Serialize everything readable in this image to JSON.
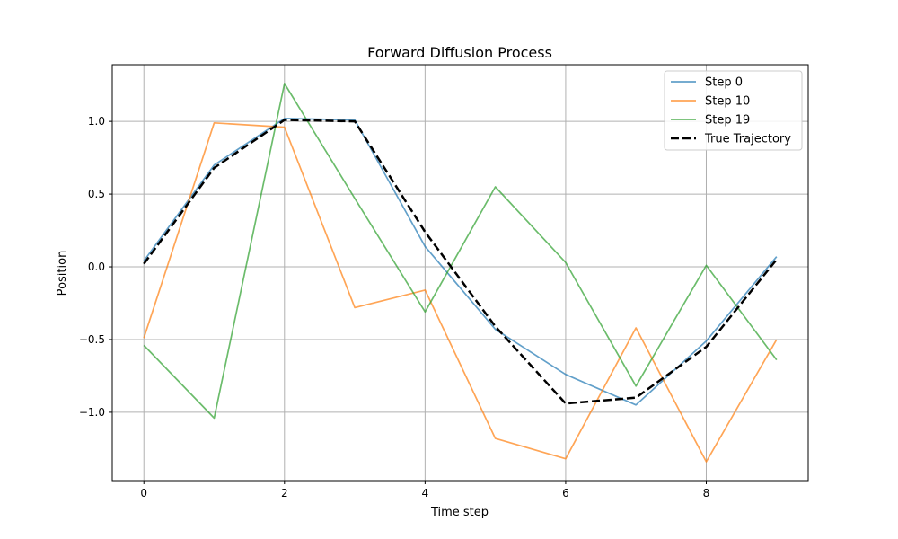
{
  "chart_data": {
    "type": "line",
    "title": "Forward Diffusion Process",
    "xlabel": "Time step",
    "ylabel": "Position",
    "xlim": [
      -0.45,
      9.45
    ],
    "ylim": [
      -1.47,
      1.39
    ],
    "xticks": [
      0,
      2,
      4,
      6,
      8
    ],
    "xtick_labels": [
      "0",
      "2",
      "4",
      "6",
      "8"
    ],
    "yticks": [
      -1.0,
      -0.5,
      0.0,
      0.5,
      1.0
    ],
    "ytick_labels": [
      "−1.0",
      "−0.5",
      "0.0",
      "0.5",
      "1.0"
    ],
    "grid": true,
    "legend_position": "top-right",
    "x": [
      0,
      1,
      2,
      3,
      4,
      5,
      6,
      7,
      8,
      9
    ],
    "series": [
      {
        "name": "Step 0",
        "color": "#1f77b4",
        "style": "solid",
        "opacity": 0.7,
        "values": [
          0.04,
          0.7,
          1.02,
          1.01,
          0.14,
          -0.43,
          -0.74,
          -0.95,
          -0.51,
          0.07
        ]
      },
      {
        "name": "Step 10",
        "color": "#ff7f0e",
        "style": "solid",
        "opacity": 0.7,
        "values": [
          -0.49,
          0.99,
          0.96,
          -0.28,
          -0.16,
          -1.18,
          -1.32,
          -0.42,
          -1.34,
          -0.5
        ]
      },
      {
        "name": "Step 19",
        "color": "#2ca02c",
        "style": "solid",
        "opacity": 0.7,
        "values": [
          -0.54,
          -1.04,
          1.26,
          0.47,
          -0.31,
          0.55,
          0.03,
          -0.82,
          0.01,
          -0.64
        ]
      },
      {
        "name": "True Trajectory",
        "color": "#000000",
        "style": "dashed",
        "opacity": 1.0,
        "values": [
          0.02,
          0.68,
          1.01,
          1.0,
          0.24,
          -0.41,
          -0.94,
          -0.9,
          -0.55,
          0.05
        ]
      }
    ]
  }
}
